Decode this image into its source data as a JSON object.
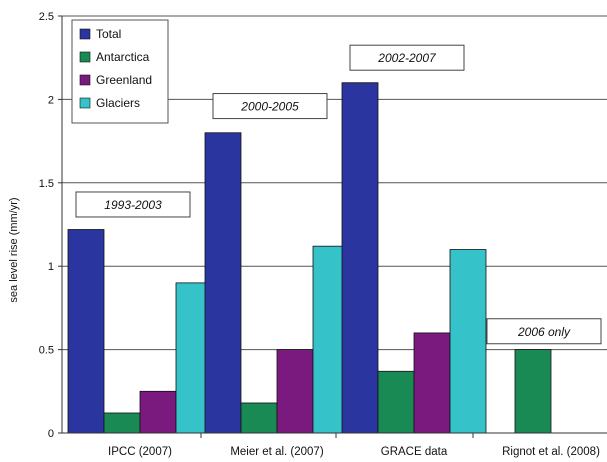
{
  "chart_data": {
    "type": "bar",
    "ylabel": "sea level rise (mm/yr)",
    "ylim": [
      0,
      2.5
    ],
    "yticks": [
      "0",
      "0.5",
      "1",
      "1.5",
      "2",
      "2.5"
    ],
    "grid": true,
    "legend_position": "top-left",
    "categories": [
      "IPCC (2007)",
      "Meier et al. (2007)",
      "GRACE data",
      "Rignot et al. (2008)"
    ],
    "series": [
      {
        "name": "Total",
        "color": "#2b35a0",
        "values": [
          1.22,
          1.8,
          2.1,
          null
        ]
      },
      {
        "name": "Antarctica",
        "color": "#1a8a55",
        "values": [
          0.12,
          0.18,
          0.37,
          0.5
        ]
      },
      {
        "name": "Greenland",
        "color": "#7b1a7e",
        "values": [
          0.25,
          0.5,
          0.6,
          null
        ]
      },
      {
        "name": "Glaciers",
        "color": "#35c2c8",
        "values": [
          0.9,
          1.12,
          1.1,
          null
        ]
      }
    ],
    "annotations": [
      {
        "text": "1993-2003",
        "category": 0,
        "y": 1.37
      },
      {
        "text": "2000-2005",
        "category": 1,
        "y": 1.96
      },
      {
        "text": "2002-2007",
        "category": 2,
        "y": 2.25
      },
      {
        "text": "2006 only",
        "category": 3,
        "y": 0.61
      }
    ]
  }
}
